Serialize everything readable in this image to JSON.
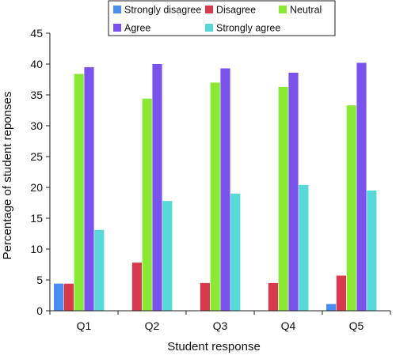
{
  "chart_data": {
    "type": "bar",
    "title": "",
    "xlabel": "Student response",
    "ylabel": "Percentage of student reponses",
    "categories": [
      "Q1",
      "Q2",
      "Q3",
      "Q4",
      "Q5"
    ],
    "ylim": [
      0,
      45
    ],
    "yticks": [
      0,
      5,
      10,
      15,
      20,
      25,
      30,
      35,
      40,
      45
    ],
    "grid": false,
    "legend_position": "top",
    "series": [
      {
        "name": "Strongly disagree",
        "color": "#4a8df0",
        "values": [
          4.4,
          0,
          0,
          0,
          1.1
        ]
      },
      {
        "name": "Disagree",
        "color": "#d63a4c",
        "values": [
          4.4,
          7.8,
          4.5,
          4.5,
          5.7
        ]
      },
      {
        "name": "Neutral",
        "color": "#8be836",
        "values": [
          38.4,
          34.4,
          37.0,
          36.3,
          33.3
        ]
      },
      {
        "name": "Agree",
        "color": "#7a52ec",
        "values": [
          39.5,
          40.0,
          39.3,
          38.6,
          40.2
        ]
      },
      {
        "name": "Strongly agree",
        "color": "#57d9d9",
        "values": [
          13.1,
          17.8,
          19.0,
          20.4,
          19.5
        ]
      }
    ]
  }
}
